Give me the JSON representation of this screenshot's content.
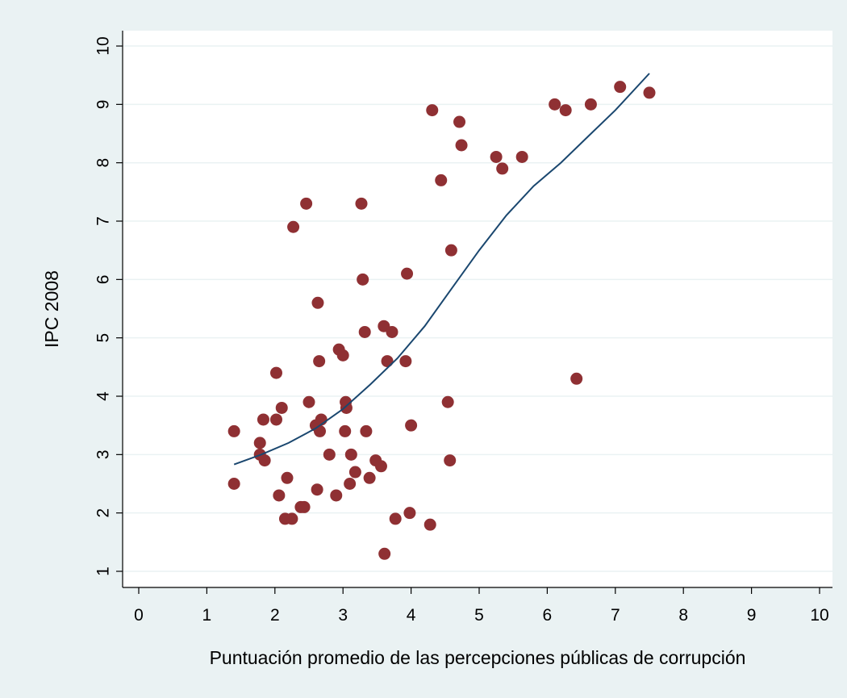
{
  "chart_data": {
    "type": "scatter",
    "title": "",
    "xlabel": "Puntuación promedio de las percepciones públicas de corrupción",
    "ylabel": "IPC 2008",
    "xlim": [
      0,
      10
    ],
    "ylim": [
      1,
      10
    ],
    "x_ticks": [
      "0",
      "1",
      "2",
      "3",
      "4",
      "5",
      "6",
      "7",
      "8",
      "9",
      "10"
    ],
    "y_ticks": [
      "1",
      "2",
      "3",
      "4",
      "5",
      "6",
      "7",
      "8",
      "9",
      "10"
    ],
    "grid": "horizontal",
    "colors": {
      "background": "#eaf2f3",
      "plot_area": "#ffffff",
      "gridline": "#eaf2f3",
      "points": "#8f3033",
      "fit_line": "#1a476f"
    },
    "series": [
      {
        "type": "scatter",
        "points": [
          [
            1.4,
            3.4
          ],
          [
            1.4,
            2.5
          ],
          [
            1.78,
            3.2
          ],
          [
            1.78,
            3.0
          ],
          [
            1.83,
            3.6
          ],
          [
            1.85,
            2.9
          ],
          [
            2.02,
            4.4
          ],
          [
            2.02,
            3.6
          ],
          [
            2.06,
            2.3
          ],
          [
            2.1,
            3.8
          ],
          [
            2.15,
            1.9
          ],
          [
            2.18,
            2.6
          ],
          [
            2.25,
            1.9
          ],
          [
            2.27,
            6.9
          ],
          [
            2.38,
            2.1
          ],
          [
            2.43,
            2.1
          ],
          [
            2.46,
            7.3
          ],
          [
            2.5,
            3.9
          ],
          [
            2.6,
            3.5
          ],
          [
            2.62,
            2.4
          ],
          [
            2.63,
            5.6
          ],
          [
            2.65,
            4.6
          ],
          [
            2.66,
            3.4
          ],
          [
            2.68,
            3.6
          ],
          [
            2.8,
            3.0
          ],
          [
            2.9,
            2.3
          ],
          [
            2.94,
            4.8
          ],
          [
            3.0,
            4.7
          ],
          [
            3.03,
            3.4
          ],
          [
            3.04,
            3.9
          ],
          [
            3.05,
            3.8
          ],
          [
            3.1,
            2.5
          ],
          [
            3.12,
            3.0
          ],
          [
            3.18,
            2.7
          ],
          [
            3.27,
            7.3
          ],
          [
            3.29,
            6.0
          ],
          [
            3.32,
            5.1
          ],
          [
            3.34,
            3.4
          ],
          [
            3.39,
            2.6
          ],
          [
            3.48,
            2.9
          ],
          [
            3.56,
            2.8
          ],
          [
            3.6,
            5.2
          ],
          [
            3.61,
            1.3
          ],
          [
            3.65,
            4.6
          ],
          [
            3.72,
            5.1
          ],
          [
            3.77,
            1.9
          ],
          [
            3.92,
            4.6
          ],
          [
            3.94,
            6.1
          ],
          [
            3.98,
            2.0
          ],
          [
            4.0,
            3.5
          ],
          [
            4.28,
            1.8
          ],
          [
            4.31,
            8.9
          ],
          [
            4.44,
            7.7
          ],
          [
            4.54,
            3.9
          ],
          [
            4.57,
            2.9
          ],
          [
            4.59,
            6.5
          ],
          [
            4.71,
            8.7
          ],
          [
            4.74,
            8.3
          ],
          [
            5.25,
            8.1
          ],
          [
            5.34,
            7.9
          ],
          [
            5.63,
            8.1
          ],
          [
            6.11,
            9.0
          ],
          [
            6.27,
            8.9
          ],
          [
            6.43,
            4.3
          ],
          [
            6.64,
            9.0
          ],
          [
            7.07,
            9.3
          ],
          [
            7.5,
            9.2
          ]
        ]
      },
      {
        "type": "line",
        "points": [
          [
            1.4,
            2.83
          ],
          [
            1.8,
            3.0
          ],
          [
            2.2,
            3.2
          ],
          [
            2.6,
            3.45
          ],
          [
            3.0,
            3.78
          ],
          [
            3.4,
            4.2
          ],
          [
            3.8,
            4.65
          ],
          [
            4.2,
            5.2
          ],
          [
            4.6,
            5.85
          ],
          [
            5.0,
            6.5
          ],
          [
            5.4,
            7.1
          ],
          [
            5.8,
            7.6
          ],
          [
            6.2,
            8.0
          ],
          [
            6.6,
            8.45
          ],
          [
            7.0,
            8.9
          ],
          [
            7.5,
            9.53
          ]
        ]
      }
    ]
  }
}
